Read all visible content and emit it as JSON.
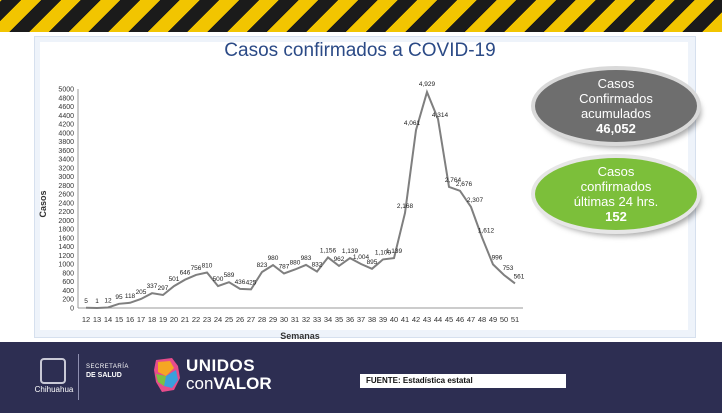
{
  "title": "Casos confirmados a COVID-19",
  "footer": {
    "source": "FUENTE: Estadística estatal",
    "state_logo_text": "Chihuahua",
    "secretaria_line1": "SECRETARÍA",
    "secretaria_line2": "DE SALUD",
    "campaign_line1": "UNIDOS",
    "campaign_line2a": "con",
    "campaign_line2b": "VALOR"
  },
  "summary": {
    "accumulated_label": "Casos Confirmados acumulados",
    "accumulated_value": "46,052",
    "last24_label": "Casos confirmados últimas 24 hrs.",
    "last24_value": "152"
  },
  "colors": {
    "line": "#7f7f7f",
    "title": "#2b4a86",
    "oval_gray": "#6e6e6e",
    "oval_green": "#7cbf3a"
  },
  "chart_data": {
    "type": "line",
    "xlabel": "Semanas",
    "ylabel": "Casos",
    "ylim": [
      0,
      5000
    ],
    "ytick_step": 200,
    "grid": false,
    "x": [
      12,
      13,
      14,
      15,
      16,
      17,
      18,
      19,
      20,
      21,
      22,
      23,
      24,
      25,
      26,
      27,
      28,
      29,
      30,
      31,
      32,
      33,
      34,
      35,
      36,
      37,
      38,
      39,
      40,
      41,
      42,
      43,
      44,
      45,
      46,
      47,
      48,
      49,
      50,
      51
    ],
    "values": [
      5,
      1,
      12,
      95,
      118,
      205,
      337,
      297,
      501,
      646,
      756,
      810,
      500,
      589,
      436,
      425,
      823,
      980,
      787,
      880,
      983,
      832,
      1156,
      962,
      1139,
      1004,
      895,
      1109,
      1139,
      2168,
      4061,
      4929,
      4314,
      2764,
      2676,
      2307,
      1612,
      996,
      753,
      561
    ],
    "labels": [
      "5",
      "1",
      "12",
      "95",
      "118",
      "205",
      "337",
      "297",
      "501",
      "646",
      "756",
      "810",
      "500",
      "589",
      "436",
      "425",
      "823",
      "980",
      "787",
      "880",
      "983",
      "832",
      "1,156",
      "962",
      "1,139",
      "1,004",
      "895",
      "1,109",
      "1,139",
      "2,168",
      "4,061",
      "4,929",
      "4,314",
      "2,764",
      "2,676",
      "2,307",
      "1,612",
      "996",
      "753",
      "561"
    ]
  }
}
